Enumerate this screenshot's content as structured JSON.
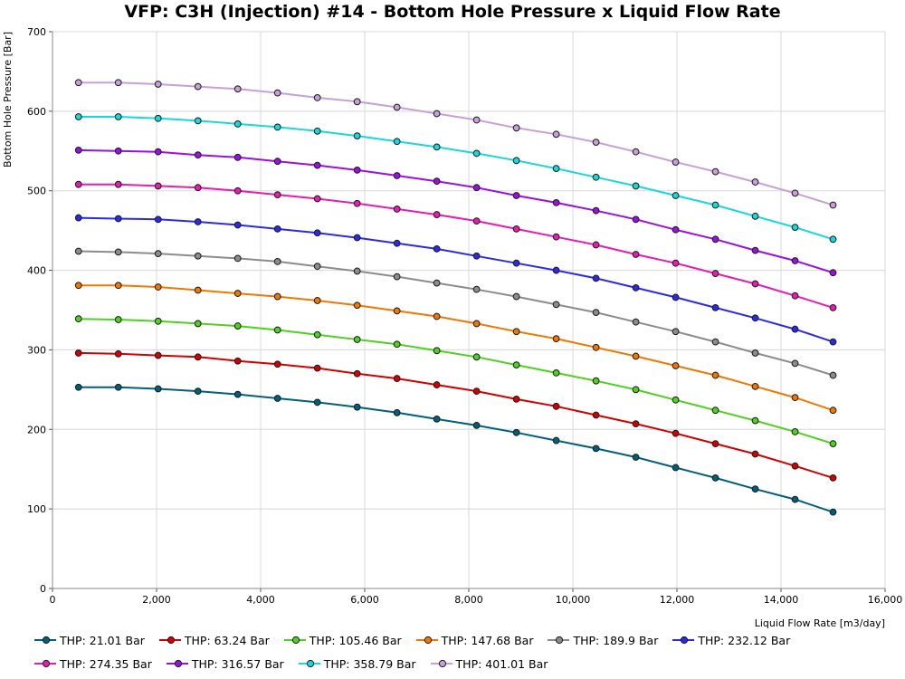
{
  "chart_data": {
    "type": "line",
    "title": "VFP: C3H (Injection) #14 - Bottom Hole Pressure x Liquid Flow Rate",
    "xlabel": "Liquid Flow Rate [m3/day]",
    "ylabel": "Bottom Hole Pressure [Bar]",
    "xlim": [
      0,
      16000
    ],
    "ylim": [
      0,
      700
    ],
    "xticks": [
      0,
      2000,
      4000,
      6000,
      8000,
      10000,
      12000,
      14000,
      16000
    ],
    "xtick_labels": [
      "0",
      "2,000",
      "4,000",
      "6,000",
      "8,000",
      "10,000",
      "12,000",
      "14,000",
      "16,000"
    ],
    "yticks": [
      0,
      100,
      200,
      300,
      400,
      500,
      600,
      700
    ],
    "ytick_labels": [
      "0",
      "100",
      "200",
      "300",
      "400",
      "500",
      "600",
      "700"
    ],
    "grid": true,
    "legend_position": "bottom",
    "x": [
      500,
      1265,
      2030,
      2795,
      3560,
      4325,
      5090,
      5855,
      6620,
      7385,
      8150,
      8915,
      9680,
      10445,
      11210,
      11975,
      12740,
      13505,
      14270,
      15000
    ],
    "series": [
      {
        "name": "THP: 21.01 Bar",
        "color": "#00607a",
        "values": [
          253,
          253,
          251,
          248,
          244,
          239,
          234,
          228,
          221,
          213,
          205,
          196,
          186,
          176,
          165,
          152,
          139,
          125,
          112,
          96
        ]
      },
      {
        "name": "THP: 63.24 Bar",
        "color": "#d20000",
        "values": [
          296,
          295,
          293,
          291,
          286,
          282,
          277,
          270,
          264,
          256,
          248,
          238,
          229,
          218,
          207,
          195,
          182,
          169,
          154,
          139
        ]
      },
      {
        "name": "THP: 105.46 Bar",
        "color": "#50d020",
        "values": [
          339,
          338,
          336,
          333,
          330,
          325,
          319,
          313,
          307,
          299,
          291,
          281,
          271,
          261,
          250,
          237,
          224,
          211,
          197,
          182
        ]
      },
      {
        "name": "THP: 147.68 Bar",
        "color": "#f07800",
        "values": [
          381,
          381,
          379,
          375,
          371,
          367,
          362,
          356,
          349,
          342,
          333,
          323,
          314,
          303,
          292,
          280,
          268,
          254,
          240,
          224
        ]
      },
      {
        "name": "THP: 189.9 Bar",
        "color": "#8c8c8c",
        "values": [
          424,
          423,
          421,
          418,
          415,
          411,
          405,
          399,
          392,
          384,
          376,
          367,
          357,
          347,
          335,
          323,
          310,
          296,
          283,
          268
        ]
      },
      {
        "name": "THP: 232.12 Bar",
        "color": "#2a2ae8",
        "values": [
          466,
          465,
          464,
          461,
          457,
          452,
          447,
          441,
          434,
          427,
          418,
          409,
          400,
          390,
          378,
          366,
          353,
          340,
          326,
          310
        ]
      },
      {
        "name": "THP: 274.35 Bar",
        "color": "#e81cb0",
        "values": [
          508,
          508,
          506,
          504,
          500,
          495,
          490,
          484,
          477,
          470,
          462,
          452,
          442,
          432,
          420,
          409,
          396,
          383,
          368,
          353
        ]
      },
      {
        "name": "THP: 316.57 Bar",
        "color": "#9a10e0",
        "values": [
          551,
          550,
          549,
          545,
          542,
          537,
          532,
          526,
          519,
          512,
          504,
          494,
          485,
          475,
          464,
          451,
          439,
          425,
          412,
          397
        ]
      },
      {
        "name": "THP: 358.79 Bar",
        "color": "#18d8d8",
        "values": [
          593,
          593,
          591,
          588,
          584,
          580,
          575,
          569,
          562,
          555,
          547,
          538,
          528,
          517,
          506,
          494,
          482,
          468,
          454,
          439
        ]
      },
      {
        "name": "THP: 401.01 Bar",
        "color": "#c8a0d8",
        "values": [
          636,
          636,
          634,
          631,
          628,
          623,
          617,
          612,
          605,
          597,
          589,
          579,
          571,
          561,
          549,
          536,
          524,
          511,
          497,
          482
        ]
      }
    ]
  }
}
